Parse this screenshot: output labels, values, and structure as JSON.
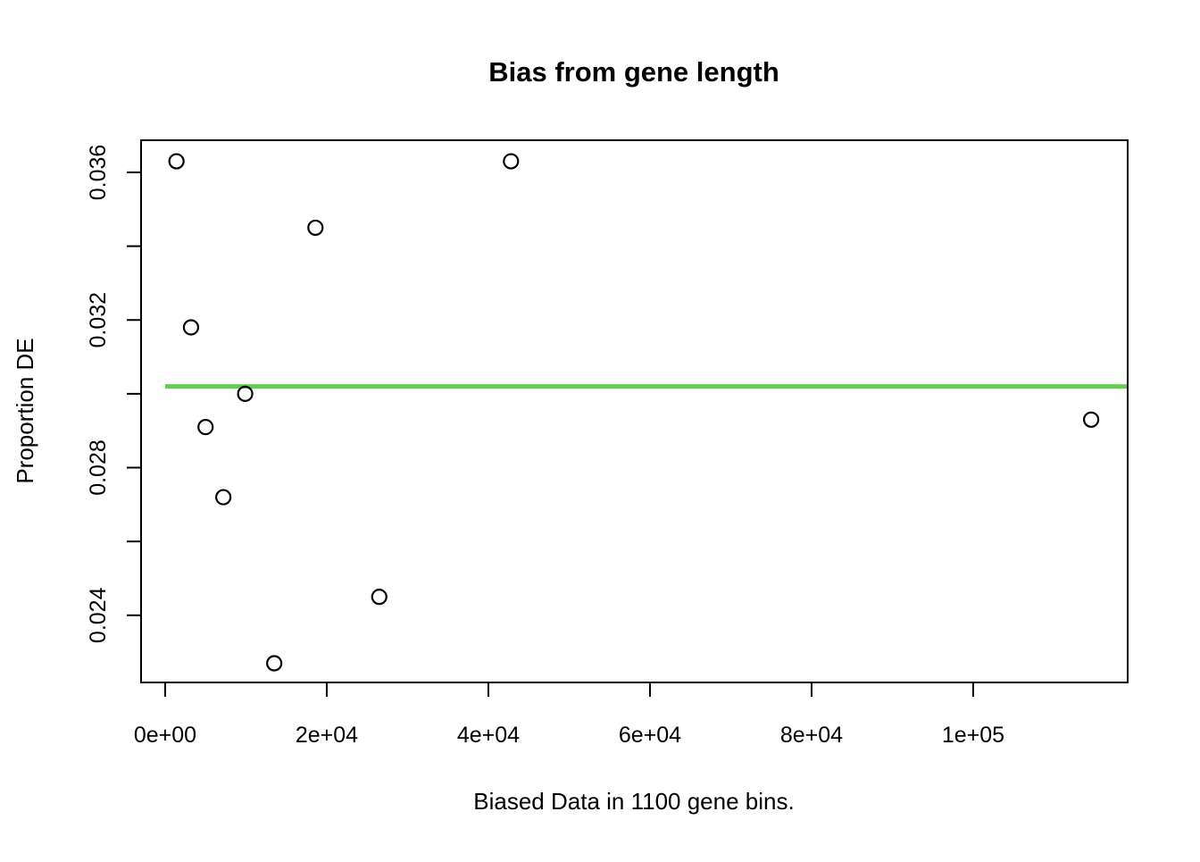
{
  "colors": {
    "background": "#ffffff",
    "axis": "#000000",
    "marker": "#000000",
    "trend_line": "#61D04F"
  },
  "chart_data": {
    "type": "scatter",
    "title": "Bias from gene length",
    "xlabel": "Biased Data in 1100 gene bins.",
    "ylabel": "Proportion DE",
    "marker": "open-circle",
    "grid": false,
    "legend": null,
    "xlim": [
      -2980,
      119120
    ],
    "ylim": [
      0.02218,
      0.03687
    ],
    "x_ticks": {
      "values": [
        0,
        20000,
        40000,
        60000,
        80000,
        100000
      ],
      "labels": [
        "0e+00",
        "2e+04",
        "4e+04",
        "6e+04",
        "8e+04",
        "1e+05"
      ]
    },
    "y_ticks": {
      "values": [
        0.024,
        0.026,
        0.028,
        0.03,
        0.032,
        0.034,
        0.036
      ],
      "labels": [
        "0.024",
        "",
        "0.028",
        "",
        "0.032",
        "",
        "0.036"
      ]
    },
    "points": [
      {
        "x": 1400,
        "y": 0.0363
      },
      {
        "x": 3200,
        "y": 0.0318
      },
      {
        "x": 5000,
        "y": 0.0291
      },
      {
        "x": 7200,
        "y": 0.0272
      },
      {
        "x": 9900,
        "y": 0.03
      },
      {
        "x": 13500,
        "y": 0.0227
      },
      {
        "x": 18600,
        "y": 0.0345
      },
      {
        "x": 26500,
        "y": 0.0245
      },
      {
        "x": 42800,
        "y": 0.0363
      },
      {
        "x": 114600,
        "y": 0.0293
      }
    ],
    "hline": {
      "y": 0.0302,
      "x_start": 0,
      "x_end": 119120,
      "color": "#61D04F",
      "stroke_width": 5
    }
  }
}
